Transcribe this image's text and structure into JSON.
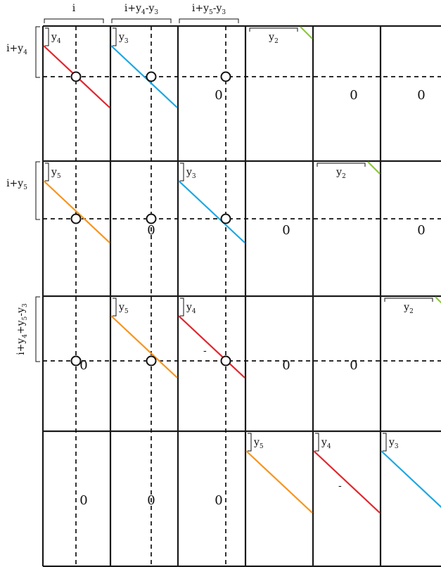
{
  "colors": {
    "red": "#e0262d",
    "blue": "#1ba7e3",
    "orange": "#f7941d",
    "green": "#8dc63f",
    "line": "#1a1a1a"
  },
  "col_headers": [
    {
      "base": "i",
      "subs": []
    },
    {
      "base": "i+y",
      "subs": [
        [
          "4",
          "-y"
        ],
        [
          "3",
          ""
        ]
      ]
    },
    {
      "base": "i+y",
      "subs": [
        [
          "5",
          "-y"
        ],
        [
          "3",
          ""
        ]
      ]
    }
  ],
  "row_headers": [
    {
      "parts": [
        [
          "i+y",
          ""
        ],
        [
          "",
          "4"
        ]
      ]
    },
    {
      "parts": [
        [
          "i+y",
          ""
        ],
        [
          "",
          "5"
        ]
      ]
    },
    {
      "parts": [
        [
          "i+y",
          ""
        ],
        [
          "",
          "4"
        ],
        [
          "+y",
          ""
        ],
        [
          "",
          "5"
        ],
        [
          "-y",
          ""
        ],
        [
          "",
          "3"
        ]
      ]
    }
  ],
  "zero_label": "0",
  "dash_label": "-",
  "y_letter": "y",
  "cells": [
    {
      "row": 0,
      "col": 0,
      "diag": "red",
      "label": "4"
    },
    {
      "row": 0,
      "col": 1,
      "diag": "blue",
      "label": "3"
    },
    {
      "row": 0,
      "col": 2,
      "zero": true
    },
    {
      "row": 0,
      "col": 3,
      "partial": "green",
      "label": "2"
    },
    {
      "row": 0,
      "col": 4,
      "zero": true
    },
    {
      "row": 0,
      "col": 5,
      "zero": true
    },
    {
      "row": 1,
      "col": 0,
      "diag": "orange",
      "label": "5"
    },
    {
      "row": 1,
      "col": 1,
      "zero": true
    },
    {
      "row": 1,
      "col": 2,
      "diag": "blue",
      "label": "3"
    },
    {
      "row": 1,
      "col": 3,
      "zero": true
    },
    {
      "row": 1,
      "col": 4,
      "partial": "green",
      "label": "2"
    },
    {
      "row": 1,
      "col": 5,
      "zero": true
    },
    {
      "row": 2,
      "col": 0,
      "zero": true
    },
    {
      "row": 2,
      "col": 1,
      "diag": "orange",
      "label": "5"
    },
    {
      "row": 2,
      "col": 2,
      "diag": "red",
      "label": "4",
      "dash": true
    },
    {
      "row": 2,
      "col": 3,
      "zero": true
    },
    {
      "row": 2,
      "col": 4,
      "zero": true
    },
    {
      "row": 2,
      "col": 5,
      "partial": "green",
      "label": "2"
    },
    {
      "row": 3,
      "col": 0,
      "zero": true
    },
    {
      "row": 3,
      "col": 1,
      "zero": true
    },
    {
      "row": 3,
      "col": 2,
      "zero": true
    },
    {
      "row": 3,
      "col": 3,
      "diag": "orange",
      "label": "5"
    },
    {
      "row": 3,
      "col": 4,
      "diag": "red",
      "label": "4",
      "dash": true
    },
    {
      "row": 3,
      "col": 5,
      "diag": "blue",
      "label": "3"
    }
  ]
}
